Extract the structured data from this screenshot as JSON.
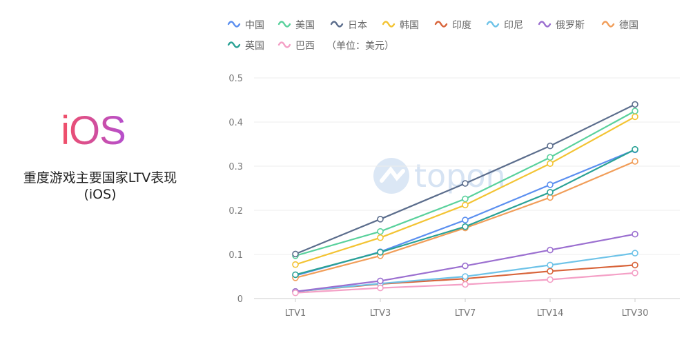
{
  "left_panel": {
    "logo_text": "iOS",
    "caption_line1": "重度游戏主要国家LTV表现",
    "caption_line2": "(iOS)"
  },
  "watermark": {
    "text": "topon",
    "icon": "topon-logo-icon"
  },
  "chart_data": {
    "type": "line",
    "categories": [
      "LTV1",
      "LTV3",
      "LTV7",
      "LTV14",
      "LTV30"
    ],
    "legend_note": "（单位：美元）",
    "ylim": [
      0,
      0.5
    ],
    "yticks": [
      0,
      0.1,
      0.2,
      0.3,
      0.4,
      0.5
    ],
    "grid": true,
    "legend_position": "top",
    "series": [
      {
        "name": "中国",
        "color": "#5b8ff0",
        "values": [
          0.052,
          0.106,
          0.178,
          0.258,
          0.337
        ]
      },
      {
        "name": "美国",
        "color": "#59d19c",
        "values": [
          0.097,
          0.152,
          0.226,
          0.32,
          0.425
        ]
      },
      {
        "name": "日本",
        "color": "#5b6d8c",
        "values": [
          0.101,
          0.18,
          0.261,
          0.346,
          0.44
        ]
      },
      {
        "name": "韩国",
        "color": "#f3c332",
        "values": [
          0.077,
          0.138,
          0.212,
          0.306,
          0.412
        ]
      },
      {
        "name": "印度",
        "color": "#d8643a",
        "values": [
          0.016,
          0.033,
          0.045,
          0.062,
          0.076
        ]
      },
      {
        "name": "印尼",
        "color": "#6ec3e8",
        "values": [
          0.016,
          0.034,
          0.05,
          0.076,
          0.103
        ]
      },
      {
        "name": "俄罗斯",
        "color": "#9b6fd0",
        "values": [
          0.016,
          0.04,
          0.074,
          0.11,
          0.146
        ]
      },
      {
        "name": "德国",
        "color": "#f19d58",
        "values": [
          0.047,
          0.097,
          0.16,
          0.229,
          0.311
        ]
      },
      {
        "name": "英国",
        "color": "#2aa295",
        "values": [
          0.054,
          0.105,
          0.163,
          0.241,
          0.338
        ]
      },
      {
        "name": "巴西",
        "color": "#f4a0c6",
        "values": [
          0.013,
          0.024,
          0.032,
          0.043,
          0.058
        ]
      }
    ]
  }
}
